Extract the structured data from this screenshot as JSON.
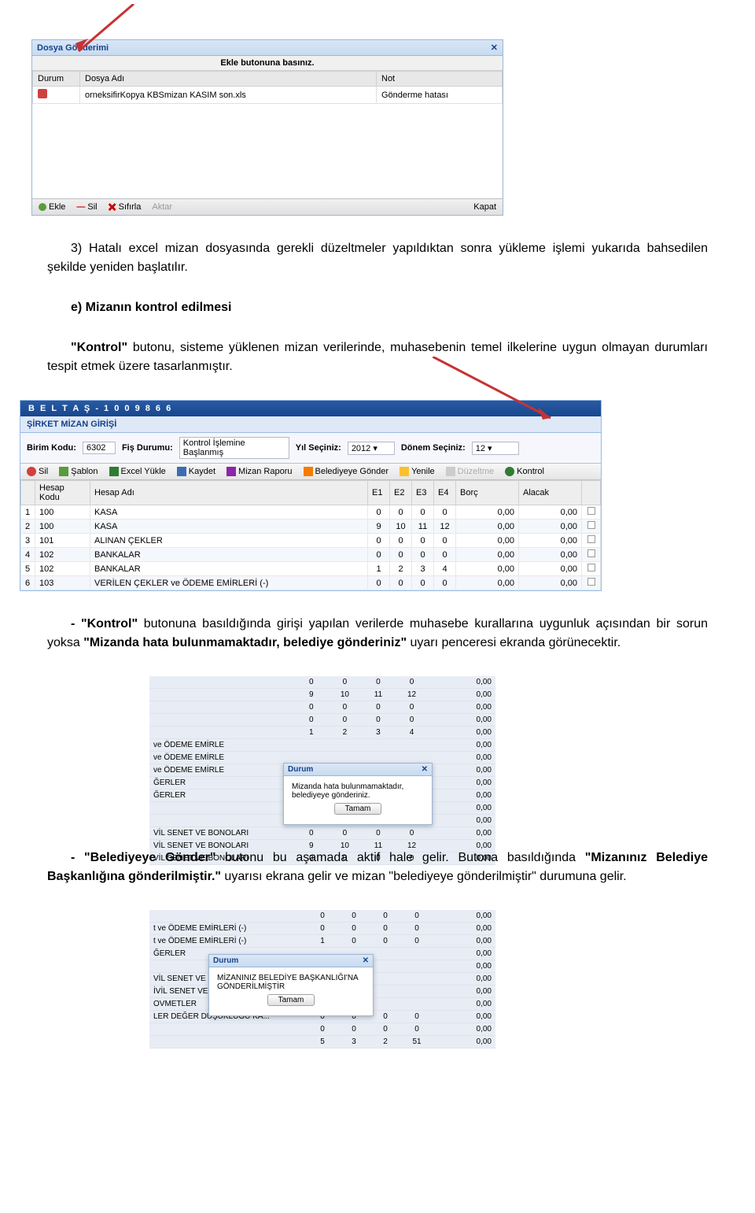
{
  "arrow_color_red": "#c83232",
  "dialog1": {
    "title": "Dosya Gönderimi",
    "banner": "Ekle butonuna basınız.",
    "cols": [
      "Durum",
      "Dosya Adı",
      "Not"
    ],
    "row": {
      "file": "orneksifirKopya KBSmizan KASIM son.xls",
      "note": "Gönderme hatası"
    },
    "footer": {
      "ekle": "Ekle",
      "sil": "Sil",
      "sifirla": "Sıfırla",
      "aktar": "Aktar",
      "kapat": "Kapat"
    }
  },
  "para1": "3)   Hatalı excel mizan dosyasında gerekli düzeltmeler yapıldıktan sonra yükleme işlemi  yukarıda bahsedilen şekilde yeniden başlatılır.",
  "heading_e": "e)   Mizanın kontrol edilmesi",
  "para2_a": "\"Kontrol\"",
  "para2_b": " butonu, sisteme yüklenen mizan verilerinde, muhasebenin temel ilkelerine uygun olmayan durumları tespit etmek üzere tasarlanmıştır.",
  "mizan": {
    "titlebar": "B E L T A Ş - 1 0 0 9 8 6 6",
    "subtitle": "ŞİRKET MİZAN GİRİŞİ",
    "birim_label": "Birim Kodu:",
    "birim_value": "6302",
    "fis_label": "Fiş Durumu:",
    "fis_value": "Kontrol İşlemine Başlanmış",
    "yil_label": "Yıl Seçiniz:",
    "yil_value": "2012",
    "donem_label": "Dönem Seçiniz:",
    "donem_value": "12",
    "toolbar": {
      "sil": "Sil",
      "sablon": "Şablon",
      "excel": "Excel Yükle",
      "kaydet": "Kaydet",
      "rapor": "Mizan Raporu",
      "gonder": "Belediyeye Gönder",
      "yenile": "Yenile",
      "duzeltme": "Düzeltme",
      "kontrol": "Kontrol"
    },
    "cols": [
      "",
      "Hesap Kodu",
      "Hesap Adı",
      "E1",
      "E2",
      "E3",
      "E4",
      "Borç",
      "Alacak",
      ""
    ],
    "rows": [
      {
        "n": "1",
        "kod": "100",
        "ad": "KASA",
        "e": [
          "0",
          "0",
          "0",
          "0"
        ],
        "b": "0,00",
        "a": "0,00"
      },
      {
        "n": "2",
        "kod": "100",
        "ad": "KASA",
        "e": [
          "9",
          "10",
          "11",
          "12"
        ],
        "b": "0,00",
        "a": "0,00"
      },
      {
        "n": "3",
        "kod": "101",
        "ad": "ALINAN ÇEKLER",
        "e": [
          "0",
          "0",
          "0",
          "0"
        ],
        "b": "0,00",
        "a": "0,00"
      },
      {
        "n": "4",
        "kod": "102",
        "ad": "BANKALAR",
        "e": [
          "0",
          "0",
          "0",
          "0"
        ],
        "b": "0,00",
        "a": "0,00"
      },
      {
        "n": "5",
        "kod": "102",
        "ad": "BANKALAR",
        "e": [
          "1",
          "2",
          "3",
          "4"
        ],
        "b": "0,00",
        "a": "0,00"
      },
      {
        "n": "6",
        "kod": "103",
        "ad": "VERİLEN ÇEKLER ve ÖDEME EMİRLERİ (-)",
        "e": [
          "0",
          "0",
          "0",
          "0"
        ],
        "b": "0,00",
        "a": "0,00"
      }
    ]
  },
  "para3_a": "- \"Kontrol\"",
  "para3_b": " butonuna basıldığında girişi yapılan verilerde muhasebe kurallarına uygunluk açısından bir sorun yoksa ",
  "para3_c": "\"Mizanda hata bulunmamaktadır, belediye gönderiniz\"",
  "para3_d": " uyarı penceresi ekranda görünecektir.",
  "shot2": {
    "rows": [
      {
        "ad": "",
        "e": [
          "0",
          "0",
          "0",
          "0"
        ],
        "v": "0,00"
      },
      {
        "ad": "",
        "e": [
          "9",
          "10",
          "11",
          "12"
        ],
        "v": "0,00"
      },
      {
        "ad": "",
        "e": [
          "0",
          "0",
          "0",
          "0"
        ],
        "v": "0,00"
      },
      {
        "ad": "",
        "e": [
          "0",
          "0",
          "0",
          "0"
        ],
        "v": "0,00"
      },
      {
        "ad": "",
        "e": [
          "1",
          "2",
          "3",
          "4"
        ],
        "v": "0,00"
      },
      {
        "ad": "ve ÖDEME EMİRLE",
        "e": [
          "",
          "",
          "",
          ""
        ],
        "v": "0,00"
      },
      {
        "ad": "ve ÖDEME EMİRLE",
        "e": [
          "",
          "",
          "",
          ""
        ],
        "v": "0,00"
      },
      {
        "ad": "ve ÖDEME EMİRLE",
        "e": [
          "",
          "",
          "",
          ""
        ],
        "v": "0,00"
      },
      {
        "ad": "ĞERLER",
        "e": [
          "",
          "",
          "",
          ""
        ],
        "v": "0,00"
      },
      {
        "ad": "ĞERLER",
        "e": [
          "",
          "",
          "",
          ""
        ],
        "v": "0,00"
      },
      {
        "ad": "",
        "e": [
          "0",
          "0",
          "0",
          "0"
        ],
        "v": "0,00"
      },
      {
        "ad": "",
        "e": [
          "5",
          "0",
          "7",
          "8"
        ],
        "v": "0,00"
      },
      {
        "ad": "VİL SENET VE BONOLARI",
        "e": [
          "0",
          "0",
          "0",
          "0"
        ],
        "v": "0,00"
      },
      {
        "ad": "VİL SENET VE BONOLARI",
        "e": [
          "9",
          "10",
          "11",
          "12"
        ],
        "v": "0,00"
      },
      {
        "ad": "VİL SENET VE BONOLARI",
        "e": [
          "0",
          "0",
          "0",
          "0"
        ],
        "v": "0,00"
      }
    ],
    "dlg_title": "Durum",
    "dlg_msg": "Mizanda hata bulunmamaktadır, belediyeye gönderiniz.",
    "dlg_ok": "Tamam"
  },
  "para4_a": "- \"Belediyeye Gönder\"",
  "para4_b": " butonu bu aşamada aktif hale gelir. Butona basıldığında ",
  "para4_c": "\"Mizanınız Belediye Başkanlığına gönderilmiştir.\"",
  "para4_d": " uyarısı ekrana gelir ve mizan \"belediyeye gönderilmiştir\" durumuna gelir.",
  "shot3": {
    "rows": [
      {
        "ad": "",
        "e": [
          "0",
          "0",
          "0",
          "0"
        ],
        "v": "0,00"
      },
      {
        "ad": "t ve ÖDEME EMİRLERİ (-)",
        "e": [
          "0",
          "0",
          "0",
          "0"
        ],
        "v": "0,00"
      },
      {
        "ad": "t ve ÖDEME EMİRLERİ (-)",
        "e": [
          "1",
          "0",
          "0",
          "0"
        ],
        "v": "0,00"
      },
      {
        "ad": "ĞERLER",
        "e": [
          "",
          "",
          "",
          ""
        ],
        "v": "0,00"
      },
      {
        "ad": "",
        "e": [
          "",
          "",
          "",
          ""
        ],
        "v": "0,00"
      },
      {
        "ad": "VİL SENET VE BO",
        "e": [
          "",
          "",
          "",
          ""
        ],
        "v": "0,00"
      },
      {
        "ad": "İVİL SENET VE B",
        "e": [
          "",
          "",
          "",
          ""
        ],
        "v": "0,00"
      },
      {
        "ad": "OVMETLER",
        "e": [
          "",
          "",
          "",
          ""
        ],
        "v": "0,00"
      },
      {
        "ad": "LER DEĞER DÜŞÜKLÜĞÜ KA...",
        "e": [
          "0",
          "0",
          "0",
          "0"
        ],
        "v": "0,00"
      },
      {
        "ad": "",
        "e": [
          "0",
          "0",
          "0",
          "0"
        ],
        "v": "0,00"
      },
      {
        "ad": "",
        "e": [
          "5",
          "3",
          "2",
          "51"
        ],
        "v": "0,00"
      }
    ],
    "dlg_title": "Durum",
    "dlg_msg": "MİZANINIZ BELEDİYE BAŞKANLIĞI'NA GÖNDERİLMİŞTİR",
    "dlg_ok": "Tamam"
  }
}
